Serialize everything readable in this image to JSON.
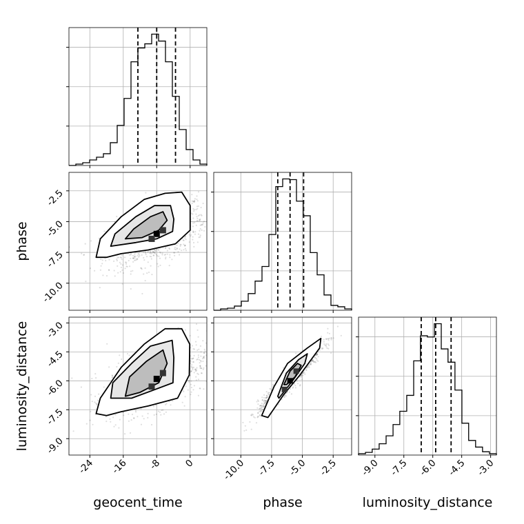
{
  "chart_data": {
    "type": "corner",
    "parameters": [
      "geocent_time",
      "phase",
      "luminosity_distance"
    ],
    "axis_labels": {
      "x": [
        "geocent_time",
        "phase",
        "luminosity_distance"
      ],
      "y": [
        "phase",
        "luminosity_distance"
      ]
    },
    "ranges": {
      "geocent_time": [
        -29.0,
        4.0
      ],
      "phase": [
        -12.2,
        -1.0
      ],
      "luminosity_distance": [
        -9.85,
        -2.7
      ]
    },
    "ticks": {
      "geocent_time": [
        "-24",
        "-16",
        "-8",
        "0"
      ],
      "phase": [
        "-10.0",
        "-7.5",
        "-5.0",
        "-2.5"
      ],
      "luminosity_distance": [
        "-9.0",
        "-7.5",
        "-6.0",
        "-4.5",
        "-3.0"
      ]
    },
    "tick_values": {
      "geocent_time": [
        -24,
        -16,
        -8,
        0
      ],
      "phase": [
        -10.0,
        -7.5,
        -5.0,
        -2.5
      ],
      "luminosity_distance": [
        -9.0,
        -7.5,
        -6.0,
        -4.5,
        -3.0
      ]
    },
    "quantiles": {
      "geocent_time": [
        -12.5,
        -8.0,
        -3.5
      ],
      "phase": [
        -7.0,
        -6.0,
        -4.9
      ],
      "luminosity_distance": [
        -6.6,
        -5.85,
        -5.05
      ]
    },
    "histograms": {
      "geocent_time": {
        "edges": [
          -29.0,
          -27.35,
          -25.7,
          -24.05,
          -22.4,
          -20.75,
          -19.1,
          -17.45,
          -15.8,
          -14.15,
          -12.5,
          -10.85,
          -9.2,
          -7.55,
          -5.9,
          -4.25,
          -2.6,
          -0.95,
          0.7,
          2.35,
          4.0
        ],
        "counts": [
          0,
          2,
          4,
          8,
          12,
          17,
          33,
          58,
          97,
          150,
          170,
          176,
          190,
          180,
          150,
          100,
          52,
          23,
          8,
          2
        ]
      },
      "phase": {
        "edges": [
          -12.2,
          -11.64,
          -11.08,
          -10.52,
          -9.96,
          -9.4,
          -8.84,
          -8.28,
          -7.72,
          -7.16,
          -6.6,
          -6.04,
          -5.48,
          -4.92,
          -4.36,
          -3.8,
          -3.24,
          -2.68,
          -2.12,
          -1.56,
          -1.0
        ],
        "counts": [
          0,
          2,
          3,
          6,
          13,
          24,
          42,
          63,
          109,
          178,
          189,
          188,
          157,
          136,
          83,
          51,
          22,
          7,
          5,
          2
        ]
      },
      "luminosity_distance": {
        "edges": [
          -9.85,
          -9.49,
          -9.14,
          -8.78,
          -8.42,
          -8.06,
          -7.71,
          -7.35,
          -6.99,
          -6.64,
          -6.28,
          -5.92,
          -5.56,
          -5.21,
          -4.85,
          -4.49,
          -4.14,
          -3.78,
          -3.42,
          -3.06,
          -2.7
        ],
        "counts": [
          2,
          4,
          9,
          17,
          29,
          46,
          66,
          90,
          142,
          180,
          178,
          198,
          160,
          140,
          98,
          48,
          22,
          12,
          5,
          2
        ]
      }
    },
    "pairs": [
      {
        "x": "geocent_time",
        "y": "phase",
        "mean": [
          -8.0,
          -6.0
        ],
        "std": [
          6.0,
          1.3
        ],
        "corr": 0.52,
        "contours": [
          {
            "level": 1,
            "points": [
              [
                -22.5,
                -7.9
              ],
              [
                -21.5,
                -6.4
              ],
              [
                -16.5,
                -4.6
              ],
              [
                -11.0,
                -3.2
              ],
              [
                -6.0,
                -2.7
              ],
              [
                -2.0,
                -2.6
              ],
              [
                0.0,
                -3.7
              ],
              [
                0.0,
                -5.7
              ],
              [
                -3.5,
                -6.8
              ],
              [
                -10.0,
                -7.3
              ],
              [
                -16.5,
                -7.6
              ],
              [
                -20.0,
                -7.9
              ]
            ]
          },
          {
            "level": 2,
            "points": [
              [
                -19.0,
                -7.0
              ],
              [
                -18.0,
                -6.0
              ],
              [
                -13.0,
                -4.6
              ],
              [
                -8.5,
                -3.7
              ],
              [
                -4.7,
                -3.7
              ],
              [
                -3.9,
                -4.8
              ],
              [
                -4.2,
                -5.8
              ],
              [
                -8.0,
                -6.4
              ],
              [
                -13.0,
                -6.7
              ]
            ]
          },
          {
            "level": 3,
            "points": [
              [
                -15.5,
                -6.4
              ],
              [
                -13.5,
                -5.6
              ],
              [
                -9.5,
                -4.6
              ],
              [
                -6.5,
                -4.2
              ],
              [
                -5.5,
                -4.9
              ],
              [
                -7.5,
                -5.7
              ],
              [
                -11.5,
                -6.3
              ]
            ]
          }
        ]
      },
      {
        "x": "geocent_time",
        "y": "luminosity_distance",
        "mean": [
          -8.0,
          -5.9
        ],
        "std": [
          6.0,
          0.9
        ],
        "corr": 0.52,
        "contours": [
          {
            "level": 1,
            "points": [
              [
                -22.5,
                -7.7
              ],
              [
                -21.5,
                -6.9
              ],
              [
                -16.5,
                -5.3
              ],
              [
                -11.0,
                -4.1
              ],
              [
                -6.0,
                -3.3
              ],
              [
                -2.0,
                -3.3
              ],
              [
                -0.1,
                -4.1
              ],
              [
                -0.2,
                -5.7
              ],
              [
                -3.0,
                -6.9
              ],
              [
                -10.0,
                -7.3
              ],
              [
                -16.5,
                -7.6
              ],
              [
                -20.0,
                -7.8
              ]
            ]
          },
          {
            "level": 2,
            "points": [
              [
                -19.0,
                -6.9
              ],
              [
                -18.5,
                -6.1
              ],
              [
                -14.0,
                -5.1
              ],
              [
                -9.5,
                -4.2
              ],
              [
                -4.3,
                -3.9
              ],
              [
                -3.9,
                -4.8
              ],
              [
                -4.1,
                -6.1
              ],
              [
                -9.0,
                -6.5
              ],
              [
                -14.0,
                -6.9
              ]
            ]
          },
          {
            "level": 3,
            "points": [
              [
                -15.5,
                -6.8
              ],
              [
                -14.5,
                -5.8
              ],
              [
                -10.5,
                -5.0
              ],
              [
                -6.5,
                -4.4
              ],
              [
                -5.5,
                -5.1
              ],
              [
                -7.5,
                -6.1
              ],
              [
                -12.0,
                -6.6
              ]
            ]
          }
        ]
      },
      {
        "x": "phase",
        "y": "luminosity_distance",
        "mean": [
          -6.0,
          -5.9
        ],
        "std": [
          1.3,
          0.9
        ],
        "corr": 0.95,
        "contours": [
          {
            "level": 1,
            "points": [
              [
                -8.3,
                -7.8
              ],
              [
                -7.3,
                -6.3
              ],
              [
                -6.2,
                -5.1
              ],
              [
                -4.6,
                -4.3
              ],
              [
                -3.5,
                -3.8
              ],
              [
                -3.6,
                -4.3
              ],
              [
                -5.2,
                -5.7
              ],
              [
                -6.5,
                -6.7
              ],
              [
                -7.8,
                -7.9
              ]
            ]
          },
          {
            "level": 2,
            "points": [
              [
                -7.0,
                -6.8
              ],
              [
                -6.3,
                -5.6
              ],
              [
                -5.3,
                -4.9
              ],
              [
                -4.6,
                -4.6
              ],
              [
                -4.8,
                -5.1
              ],
              [
                -5.8,
                -6.0
              ],
              [
                -6.9,
                -6.9
              ]
            ]
          },
          {
            "level": 3,
            "points": [
              [
                -6.5,
                -6.2
              ],
              [
                -6.0,
                -5.5
              ],
              [
                -5.4,
                -5.1
              ],
              [
                -5.1,
                -5.2
              ],
              [
                -5.6,
                -5.8
              ],
              [
                -6.3,
                -6.2
              ]
            ]
          }
        ]
      }
    ],
    "grid": true,
    "legend": "none"
  }
}
